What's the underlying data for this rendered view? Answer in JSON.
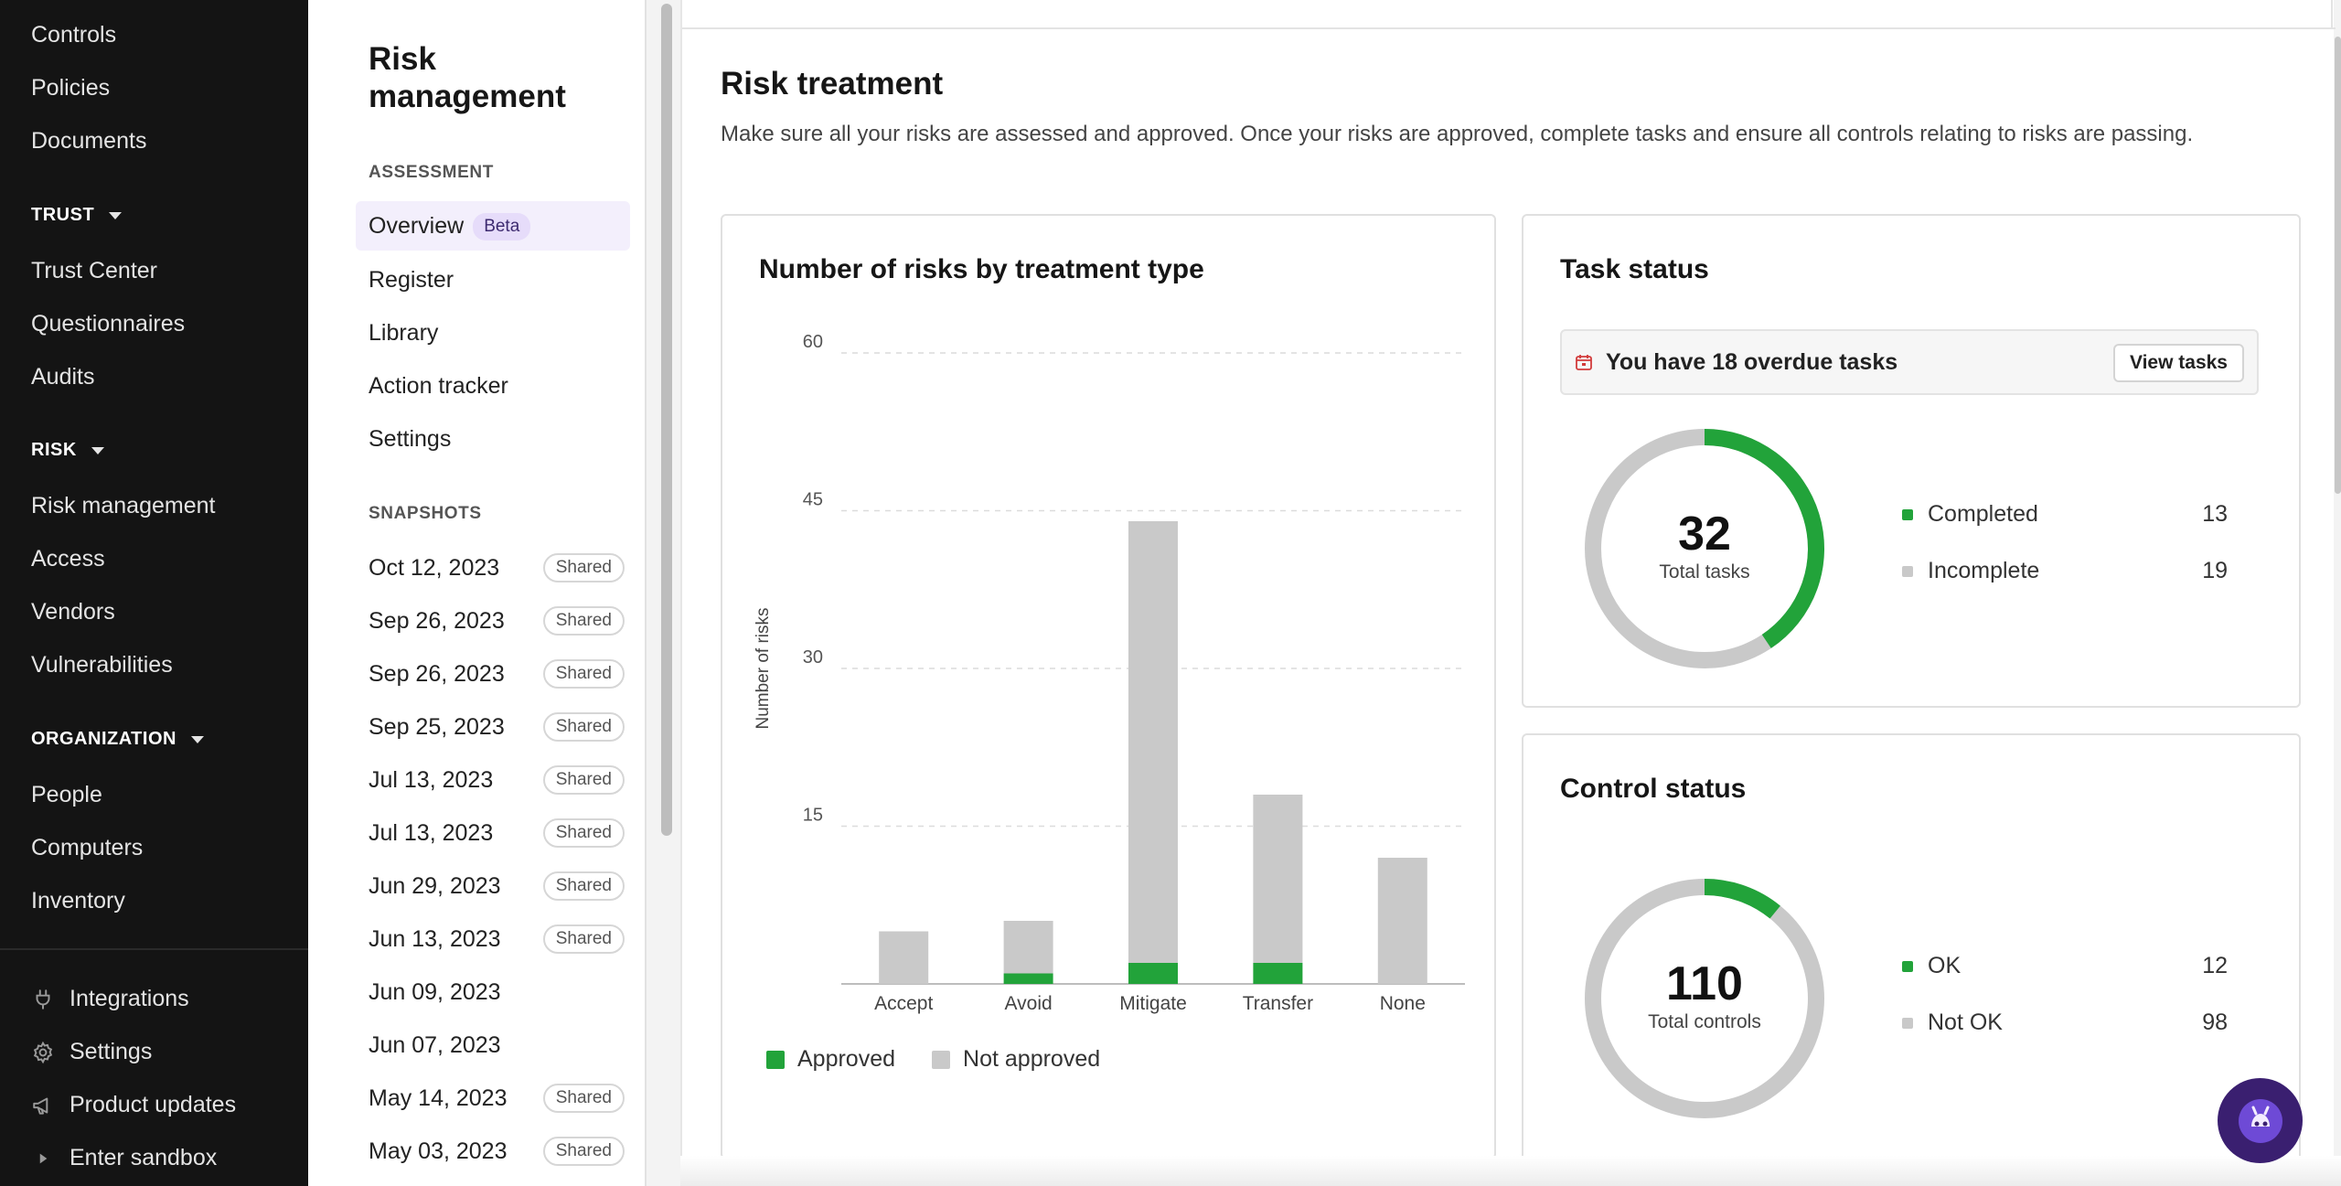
{
  "nav": {
    "items_top": [
      "Controls",
      "Policies",
      "Documents"
    ],
    "trust_header": "TRUST",
    "trust_items": [
      "Trust Center",
      "Questionnaires",
      "Audits"
    ],
    "risk_header": "RISK",
    "risk_items": [
      "Risk management",
      "Access",
      "Vendors",
      "Vulnerabilities"
    ],
    "org_header": "ORGANIZATION",
    "org_items": [
      "People",
      "Computers",
      "Inventory"
    ],
    "bottom": {
      "integrations": "Integrations",
      "settings": "Settings",
      "product_updates": "Product updates",
      "sandbox": "Enter sandbox"
    }
  },
  "subnav": {
    "title": "Risk management",
    "assessment_header": "ASSESSMENT",
    "overview": "Overview",
    "beta": "Beta",
    "register": "Register",
    "library": "Library",
    "action_tracker": "Action tracker",
    "settings": "Settings",
    "snapshots_header": "SNAPSHOTS",
    "snapshots": [
      {
        "date": "Oct 12, 2023",
        "badge": "Shared"
      },
      {
        "date": "Sep 26, 2023",
        "badge": "Shared"
      },
      {
        "date": "Sep 26, 2023",
        "badge": "Shared"
      },
      {
        "date": "Sep 25, 2023",
        "badge": "Shared"
      },
      {
        "date": "Jul 13, 2023",
        "badge": "Shared"
      },
      {
        "date": "Jul 13, 2023",
        "badge": "Shared"
      },
      {
        "date": "Jun 29, 2023",
        "badge": "Shared"
      },
      {
        "date": "Jun 13, 2023",
        "badge": "Shared"
      },
      {
        "date": "Jun 09, 2023",
        "badge": ""
      },
      {
        "date": "Jun 07, 2023",
        "badge": ""
      },
      {
        "date": "May 14, 2023",
        "badge": "Shared"
      },
      {
        "date": "May 03, 2023",
        "badge": "Shared"
      }
    ]
  },
  "main": {
    "title": "Risk treatment",
    "description": "Make sure all your risks are assessed and approved. Once your risks are approved, complete tasks and ensure all controls relating to risks are passing."
  },
  "chart_card": {
    "title": "Number of risks by treatment type"
  },
  "chart_data": {
    "type": "bar",
    "stacked": true,
    "categories": [
      "Accept",
      "Avoid",
      "Mitigate",
      "Transfer",
      "None"
    ],
    "series": [
      {
        "name": "Approved",
        "color": "#22a33a",
        "values": [
          0,
          1,
          2,
          2,
          0
        ]
      },
      {
        "name": "Not approved",
        "color": "#c9c9c9",
        "values": [
          5,
          5,
          42,
          16,
          12
        ]
      }
    ],
    "ylabel": "Number of risks",
    "yticks": [
      15,
      30,
      45,
      60
    ],
    "ylim": [
      0,
      60
    ],
    "grid": true,
    "legend": "bottom-left"
  },
  "task_status": {
    "title": "Task status",
    "overdue_text": "You have 18 overdue tasks",
    "view_button": "View tasks",
    "total": "32",
    "total_label": "Total tasks",
    "rows": [
      {
        "label": "Completed",
        "value": 13,
        "color": "#22a33a"
      },
      {
        "label": "Incomplete",
        "value": 19,
        "color": "#c9c9c9"
      }
    ]
  },
  "control_status": {
    "title": "Control status",
    "total": "110",
    "total_label": "Total controls",
    "rows": [
      {
        "label": "OK",
        "value": 12,
        "color": "#22a33a"
      },
      {
        "label": "Not OK",
        "value": 98,
        "color": "#c9c9c9"
      }
    ]
  }
}
